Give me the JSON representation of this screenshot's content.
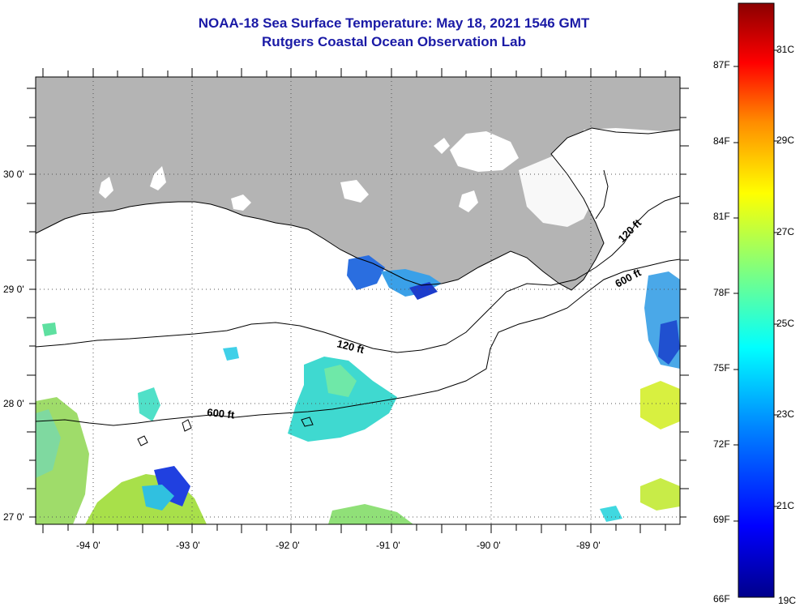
{
  "title": {
    "line1": "NOAA-18 Sea Surface Temperature:  May 18, 2021 1546 GMT",
    "line2": "Rutgers Coastal Ocean Observation Lab"
  },
  "axes": {
    "lon_labels": [
      "-94 0'",
      "-93 0'",
      "-92 0'",
      "-91 0'",
      "-90 0'",
      "-89 0'"
    ],
    "lat_labels": [
      "30 0'",
      "29 0'",
      "28 0'",
      "27 0'"
    ],
    "grid": "dotted"
  },
  "contours": {
    "shelf_120": "120 ft",
    "shelf_600": "600 ft"
  },
  "colorbar": {
    "f_labels": [
      "87F",
      "84F",
      "81F",
      "78F",
      "75F",
      "72F",
      "69F",
      "66F"
    ],
    "c_labels": [
      "31C",
      "29C",
      "27C",
      "25C",
      "23C",
      "21C",
      "19C"
    ],
    "colors": [
      "#8b0000",
      "#ff0000",
      "#ff8c00",
      "#ffff00",
      "#7fff7f",
      "#00ffff",
      "#0080ff",
      "#0000cd",
      "#00008b"
    ]
  },
  "colors": {
    "land": "#b4b4b4",
    "title": "#1a1aa6"
  }
}
